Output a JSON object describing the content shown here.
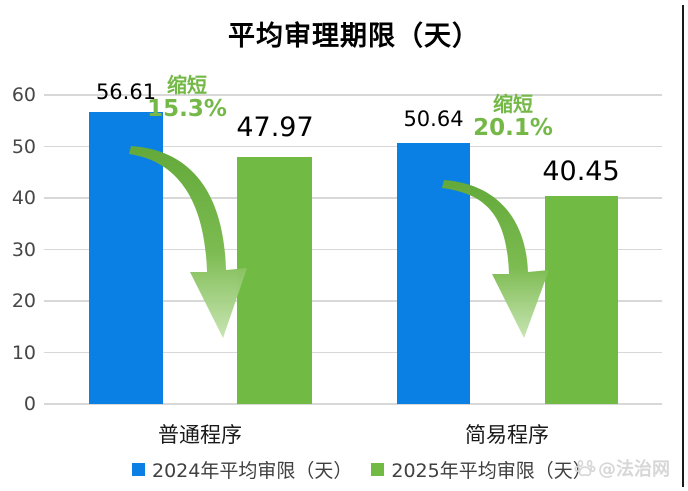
{
  "title": "平均审理期限（天）",
  "chart_data": {
    "type": "bar",
    "title": "平均审理期限（天）",
    "categories": [
      "普通程序",
      "简易程序"
    ],
    "series": [
      {
        "name": "2024年平均审限（天）",
        "color": "#0a80e4",
        "values": [
          56.61,
          50.64
        ]
      },
      {
        "name": "2025年平均审限（天）",
        "color": "#71bb44",
        "values": [
          47.97,
          40.45
        ]
      }
    ],
    "annotations": [
      {
        "label": "缩短",
        "percent": "15.3%",
        "category": "普通程序"
      },
      {
        "label": "缩短",
        "percent": "20.1%",
        "category": "简易程序"
      }
    ],
    "ylim": [
      0,
      60
    ],
    "yticks": [
      0,
      10,
      20,
      30,
      40,
      50,
      60
    ],
    "grid": true,
    "legend_position": "bottom"
  },
  "legend": [
    {
      "label": "2024年平均审限（天）",
      "color": "#0a80e4"
    },
    {
      "label": "2025年平均审限（天）",
      "color": "#71bb44"
    }
  ],
  "colors": {
    "bar_2024": "#0a80e4",
    "bar_2025": "#71bb44",
    "annotation_text": "#74b847",
    "arrow_dark": "#63a93a",
    "arrow_light": "#c4e3ae",
    "grid": "#d8d8d8",
    "tick_text": "#474747",
    "watermark": "#d7d7d7"
  },
  "watermark": {
    "icon": "paw-icon",
    "text": "@法治网"
  }
}
